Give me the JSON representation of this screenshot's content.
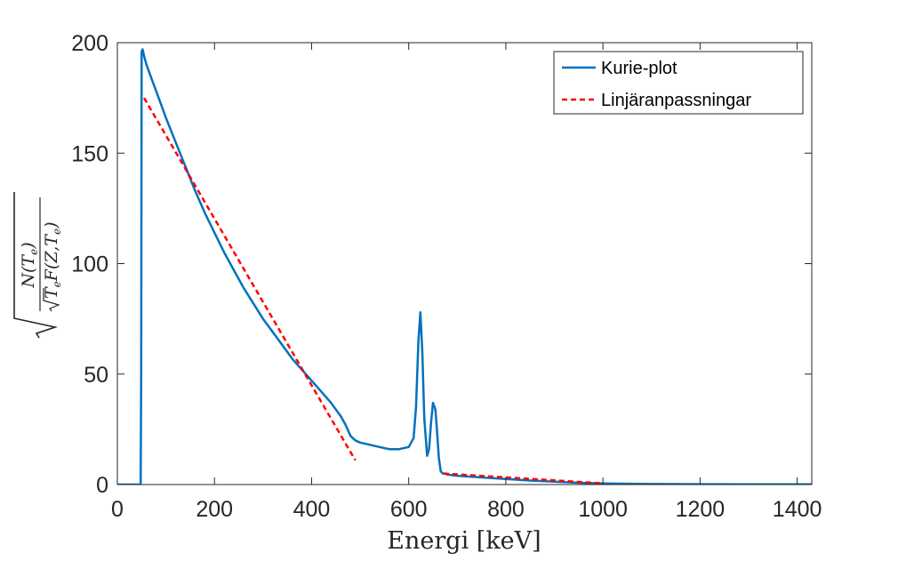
{
  "chart_data": {
    "type": "line",
    "title": "",
    "xlabel": "Energi [keV]",
    "ylabel": "sqrt( N(Te) / ( sqrt(Te) F(Z,Te) ) )",
    "ylabel_parts": {
      "numerator": "N(T",
      "numerator_sub": "e",
      "numerator_close": ")",
      "denominator_a": "T",
      "denominator_sub": "e",
      "denominator_b": "F(Z,T",
      "denominator_sub2": "e",
      "denominator_close": ")"
    },
    "xlim": [
      0,
      1430
    ],
    "ylim": [
      0,
      200
    ],
    "xticks": [
      0,
      200,
      400,
      600,
      800,
      1000,
      1200,
      1400
    ],
    "yticks": [
      0,
      50,
      100,
      150,
      200
    ],
    "grid": false,
    "legend": {
      "placement": "top-right"
    },
    "series": [
      {
        "name": "Kurie-plot",
        "color": "#0072BD",
        "style": "solid",
        "x": [
          0,
          48,
          49,
          50,
          52,
          55,
          60,
          70,
          80,
          90,
          100,
          120,
          140,
          160,
          180,
          200,
          220,
          240,
          260,
          280,
          300,
          320,
          340,
          360,
          380,
          400,
          420,
          440,
          460,
          470,
          480,
          490,
          500,
          520,
          540,
          560,
          580,
          600,
          610,
          615,
          620,
          624,
          628,
          632,
          638,
          642,
          646,
          650,
          655,
          658,
          662,
          666,
          670,
          675,
          680,
          700,
          750,
          800,
          850,
          900,
          950,
          1000,
          1050,
          1100,
          1200,
          1300,
          1430
        ],
        "y": [
          0,
          0,
          50,
          196,
          197,
          194,
          190,
          184,
          178,
          172,
          166,
          155,
          144,
          133,
          123,
          114,
          105,
          97,
          89,
          82,
          75,
          69,
          63,
          57,
          52,
          47,
          42,
          37,
          31,
          27,
          22,
          20,
          19,
          18,
          17,
          16,
          16,
          17,
          21,
          35,
          65,
          78,
          60,
          30,
          13,
          16,
          28,
          37,
          34,
          25,
          12,
          6,
          5,
          5,
          4.5,
          4,
          3.2,
          2.5,
          1.8,
          1.3,
          0.8,
          0.5,
          0.35,
          0.25,
          0.15,
          0.1,
          0.1
        ]
      },
      {
        "name": "Linjäranpassningar",
        "color": "#FF0000",
        "style": "dashed",
        "segments": [
          {
            "x": [
              55,
              490
            ],
            "y": [
              175,
              11
            ]
          },
          {
            "x": [
              672,
              1000
            ],
            "y": [
              5,
              0.5
            ]
          }
        ]
      }
    ]
  }
}
